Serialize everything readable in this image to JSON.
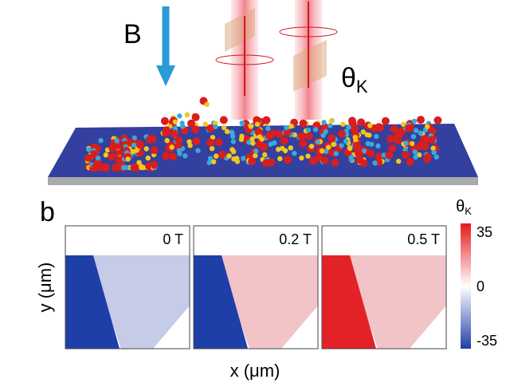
{
  "illustration": {
    "field_label": "B",
    "kerr_label": {
      "symbol": "θ",
      "subscript": "K"
    }
  },
  "panel": {
    "label": "b",
    "maps": [
      {
        "label": "0 T"
      },
      {
        "label": "0.2 T"
      },
      {
        "label": "0.5 T"
      }
    ],
    "y_axis_label": "y (μm)",
    "x_axis_label": "x (μm)",
    "colorbar": {
      "title": {
        "symbol": "θ",
        "subscript": "K"
      },
      "ticks": [
        "35",
        "0",
        "-35"
      ]
    }
  }
}
